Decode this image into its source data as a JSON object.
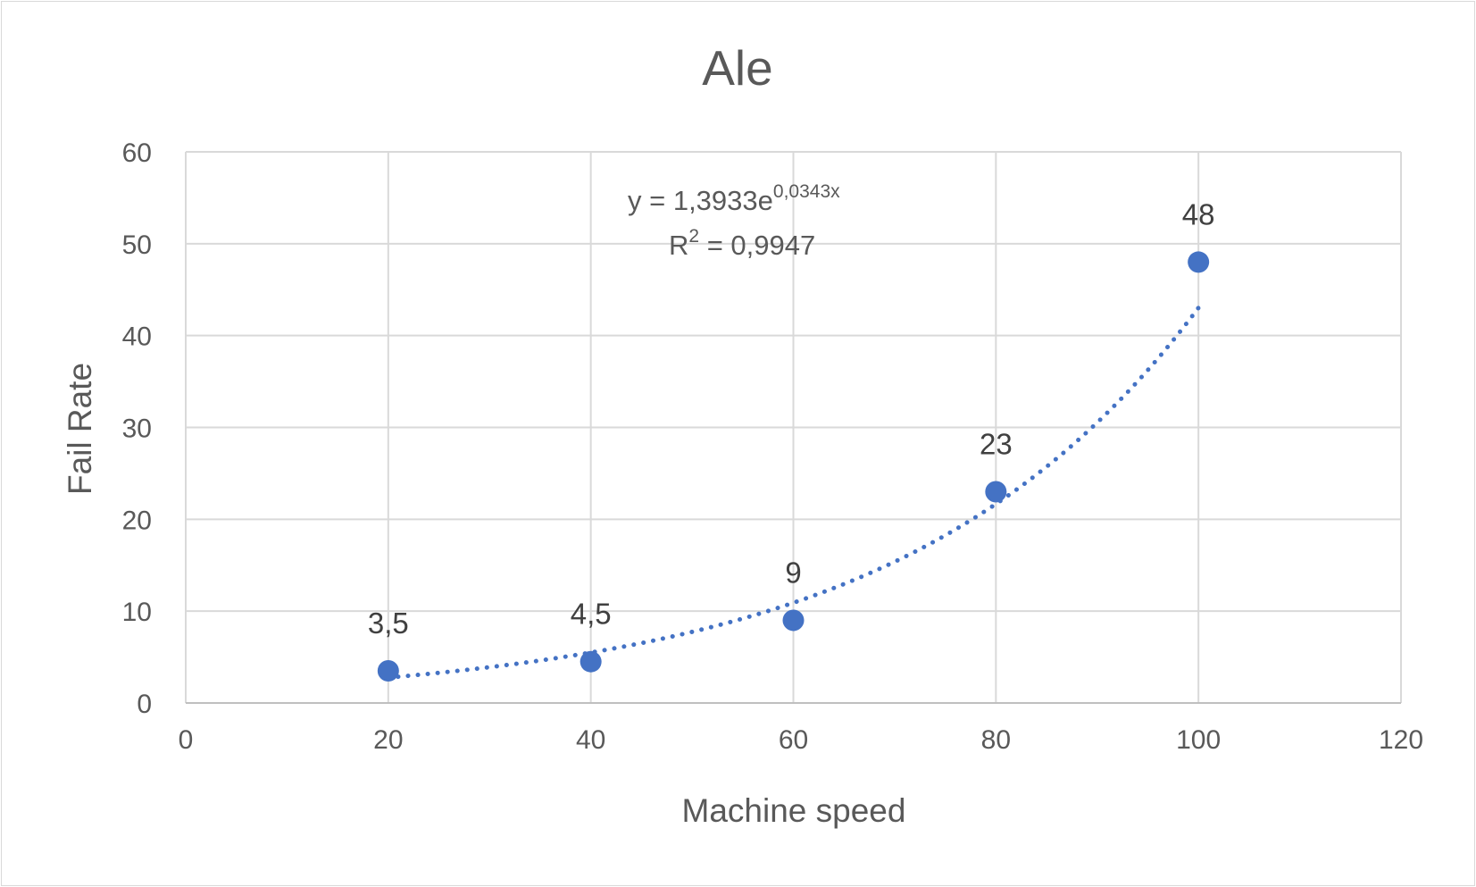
{
  "chart_data": {
    "type": "scatter",
    "title": "Ale",
    "xlabel": "Machine speed",
    "ylabel": "Fail Rate",
    "xlim": [
      0,
      120
    ],
    "ylim": [
      0,
      60
    ],
    "x_ticks": [
      "0",
      "20",
      "40",
      "60",
      "80",
      "100",
      "120"
    ],
    "y_ticks": [
      "0",
      "10",
      "20",
      "30",
      "40",
      "50",
      "60"
    ],
    "grid": true,
    "series": [
      {
        "x": [
          20,
          40,
          60,
          80,
          100
        ],
        "y": [
          3.5,
          4.5,
          9,
          23,
          48
        ],
        "labels": [
          "3,5",
          "4,5",
          "9",
          "23",
          "48"
        ],
        "color": "#4472c4"
      }
    ],
    "trendline": {
      "type": "exponential",
      "a": 1.3933,
      "b": 0.0343,
      "style": "dotted",
      "color": "#4472c4",
      "equation_main": "y = 1,3933e",
      "equation_exponent": "0,0343x",
      "r2_prefix": "R",
      "r2_sup": "2",
      "r2_value": " = 0,9947"
    }
  }
}
